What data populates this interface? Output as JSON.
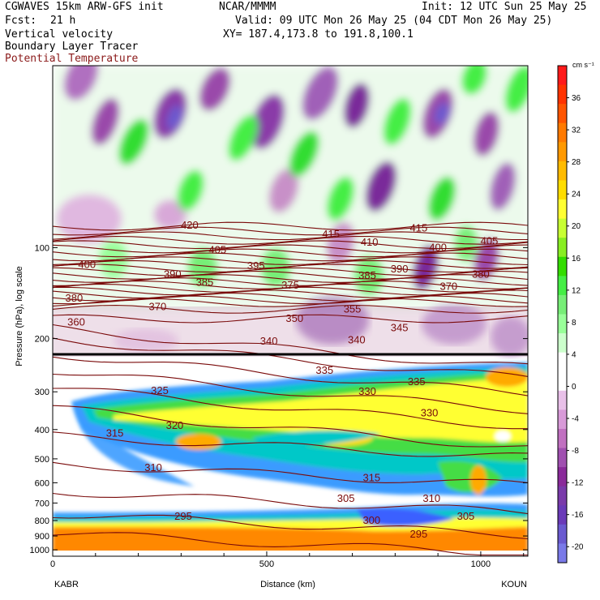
{
  "header": {
    "model": "CGWAVES 15km ARW-GFS init",
    "org": "NCAR/MMMM",
    "init": "Init: 12 UTC Sun 25 May 25",
    "fcst_label": "Fcst:",
    "fcst_value": "21 h",
    "valid": "Valid: 09 UTC Mon 26 May 25 (04 CDT Mon 26 May 25)",
    "field1": "Vertical velocity",
    "field2": "Boundary Layer Tracer",
    "field3": "Potential Temperature",
    "xy": "XY= 187.4,173.8 to 191.8,100.1"
  },
  "colors": {
    "theta_contour": "#7a0a0a",
    "tracer_scale": [
      "#ffffff",
      "#3a9bff",
      "#00c8c8",
      "#44dd44",
      "#ffff33",
      "#ffaa00",
      "#ff7700"
    ],
    "w_positive": "#7de07d",
    "w_negative": "#8a2a9a"
  },
  "chart_data": {
    "type": "heatmap",
    "xlabel": "Distance (km)",
    "ylabel": "Pressure (hPa), log scale",
    "x_ticks": [
      "0",
      "500",
      "1000"
    ],
    "xlim": [
      0,
      1110
    ],
    "y_ticks": [
      "100",
      "200",
      "300",
      "400",
      "500",
      "600",
      "700",
      "800",
      "900",
      "1000"
    ],
    "y_tick_values": [
      100,
      200,
      300,
      400,
      500,
      600,
      700,
      800,
      900,
      1000
    ],
    "ylim": [
      1050,
      25
    ],
    "yscale": "log",
    "left_endpoint": "KABR",
    "right_endpoint": "KOUN",
    "colorbar": {
      "units": "cm s⁻¹",
      "tick_labels": [
        "36",
        "32",
        "28",
        "24",
        "20",
        "16",
        "12",
        "8",
        "4",
        "0",
        "-4",
        "-8",
        "-12",
        "-16",
        "-20"
      ],
      "tick_values": [
        36,
        32,
        28,
        24,
        20,
        16,
        12,
        8,
        4,
        0,
        -4,
        -8,
        -12,
        -16,
        -20
      ],
      "colors": [
        "#ff1a1a",
        "#ff3300",
        "#ff5500",
        "#ff7a00",
        "#ff9900",
        "#ffbb00",
        "#ffdd00",
        "#ffff33",
        "#c8ff33",
        "#88ee22",
        "#33dd00",
        "#44ee44",
        "#77ee77",
        "#99ff99",
        "#ccffcc",
        "#ffffff",
        "#ffffff",
        "#e8c0e8",
        "#d89ad8",
        "#c070c0",
        "#a050b0",
        "#8a2a9a",
        "#7a3aaa",
        "#6a3ab8",
        "#6a5ad0",
        "#7a7ae8"
      ]
    },
    "theta_labels": [
      {
        "text": "420",
        "x": 320,
        "p": 86
      },
      {
        "text": "415",
        "x": 650,
        "p": 92
      },
      {
        "text": "415",
        "x": 855,
        "p": 88
      },
      {
        "text": "410",
        "x": 740,
        "p": 98
      },
      {
        "text": "405",
        "x": 385,
        "p": 104
      },
      {
        "text": "405",
        "x": 1020,
        "p": 97
      },
      {
        "text": "400",
        "x": 80,
        "p": 116
      },
      {
        "text": "400",
        "x": 900,
        "p": 102
      },
      {
        "text": "395",
        "x": 475,
        "p": 117
      },
      {
        "text": "390",
        "x": 280,
        "p": 125
      },
      {
        "text": "390",
        "x": 810,
        "p": 120
      },
      {
        "text": "385",
        "x": 355,
        "p": 133
      },
      {
        "text": "385",
        "x": 735,
        "p": 126
      },
      {
        "text": "380",
        "x": 50,
        "p": 150
      },
      {
        "text": "380",
        "x": 1000,
        "p": 125
      },
      {
        "text": "375",
        "x": 555,
        "p": 136
      },
      {
        "text": "370",
        "x": 245,
        "p": 160
      },
      {
        "text": "370",
        "x": 925,
        "p": 137
      },
      {
        "text": "360",
        "x": 55,
        "p": 180
      },
      {
        "text": "355",
        "x": 700,
        "p": 163
      },
      {
        "text": "350",
        "x": 565,
        "p": 175
      },
      {
        "text": "345",
        "x": 810,
        "p": 188
      },
      {
        "text": "340",
        "x": 505,
        "p": 208
      },
      {
        "text": "340",
        "x": 710,
        "p": 206
      },
      {
        "text": "335",
        "x": 635,
        "p": 260
      },
      {
        "text": "335",
        "x": 850,
        "p": 283
      },
      {
        "text": "330",
        "x": 735,
        "p": 305
      },
      {
        "text": "330",
        "x": 880,
        "p": 360
      },
      {
        "text": "325",
        "x": 250,
        "p": 303
      },
      {
        "text": "320",
        "x": 285,
        "p": 395
      },
      {
        "text": "315",
        "x": 145,
        "p": 420
      },
      {
        "text": "315",
        "x": 745,
        "p": 590
      },
      {
        "text": "310",
        "x": 235,
        "p": 545
      },
      {
        "text": "310",
        "x": 885,
        "p": 690
      },
      {
        "text": "305",
        "x": 685,
        "p": 690
      },
      {
        "text": "305",
        "x": 965,
        "p": 790
      },
      {
        "text": "300",
        "x": 745,
        "p": 815
      },
      {
        "text": "295",
        "x": 305,
        "p": 790
      },
      {
        "text": "295",
        "x": 855,
        "p": 905
      }
    ]
  }
}
